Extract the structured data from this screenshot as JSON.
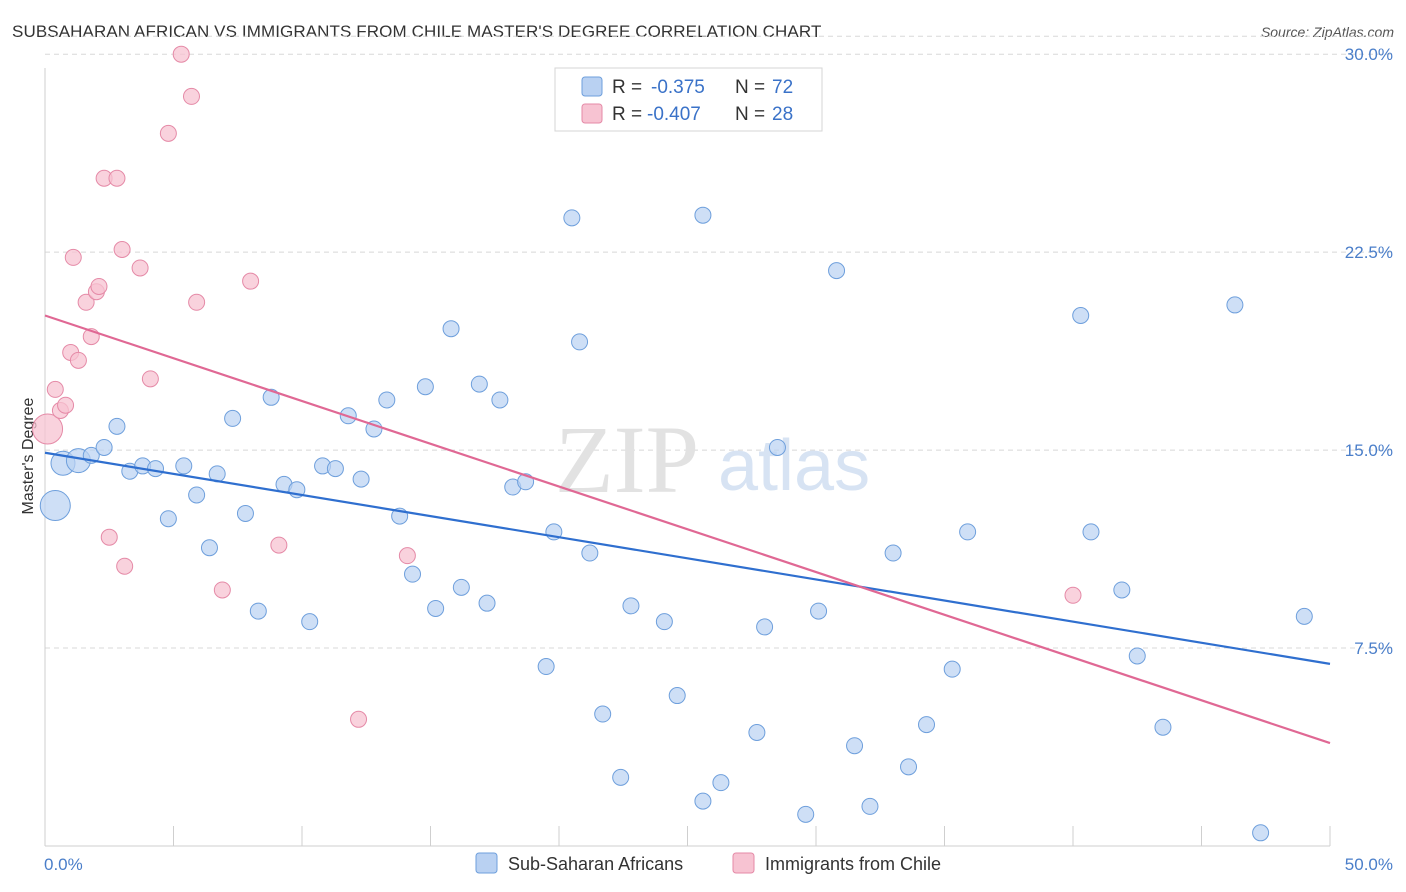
{
  "header": {
    "title": "SUBSAHARAN AFRICAN VS IMMIGRANTS FROM CHILE MASTER'S DEGREE CORRELATION CHART",
    "source": "Source: ZipAtlas.com"
  },
  "watermark": {
    "zip": "ZIP",
    "atlas": "atlas"
  },
  "legend_top": {
    "rows": [
      {
        "r_label": "R =",
        "r_value": "-0.375",
        "n_label": "N =",
        "n_value": "72"
      },
      {
        "r_label": "R =",
        "r_value": "-0.407",
        "n_label": "N =",
        "n_value": "28"
      }
    ]
  },
  "legend_bottom": {
    "items": [
      {
        "label": "Sub-Saharan Africans"
      },
      {
        "label": "Immigrants from Chile"
      }
    ]
  },
  "colors": {
    "blue_fill": "#b9d1f2",
    "blue_stroke": "#6e9fdc",
    "blue_line": "#2f6fcf",
    "pink_fill": "#f7c3d2",
    "pink_stroke": "#e58aa7",
    "pink_line": "#e06894",
    "tick_text": "#4a7ec9",
    "grid": "#d8d8d8"
  },
  "chart_data": {
    "type": "scatter",
    "title": "SUBSAHARAN AFRICAN VS IMMIGRANTS FROM CHILE MASTER'S DEGREE CORRELATION CHART",
    "xlabel": "",
    "ylabel": "Master's Degree",
    "xlim": [
      0,
      50
    ],
    "ylim": [
      0,
      30.5
    ],
    "x_tick_labels": [
      "0.0%",
      "50.0%"
    ],
    "y_ticks": [
      7.5,
      15.0,
      22.5,
      30.0
    ],
    "y_tick_labels": [
      "7.5%",
      "15.0%",
      "22.5%",
      "30.0%"
    ],
    "grid": "horizontal dashed",
    "legend_placement": "top-center",
    "series": [
      {
        "name": "Sub-Saharan Africans",
        "r": -0.375,
        "n": 72,
        "trend": {
          "x": [
            0,
            50
          ],
          "y": [
            14.9,
            6.9
          ]
        },
        "points": [
          {
            "x": 0.4,
            "y": 12.9,
            "s": 3
          },
          {
            "x": 0.7,
            "y": 14.5,
            "s": 2
          },
          {
            "x": 1.3,
            "y": 14.6,
            "s": 2
          },
          {
            "x": 1.8,
            "y": 14.8,
            "s": 1
          },
          {
            "x": 2.3,
            "y": 15.1,
            "s": 1
          },
          {
            "x": 2.8,
            "y": 15.9,
            "s": 1
          },
          {
            "x": 3.3,
            "y": 14.2,
            "s": 1
          },
          {
            "x": 3.8,
            "y": 14.4,
            "s": 1
          },
          {
            "x": 4.3,
            "y": 14.3,
            "s": 1
          },
          {
            "x": 4.8,
            "y": 12.4,
            "s": 1
          },
          {
            "x": 5.4,
            "y": 14.4,
            "s": 1
          },
          {
            "x": 5.9,
            "y": 13.3,
            "s": 1
          },
          {
            "x": 6.4,
            "y": 11.3,
            "s": 1
          },
          {
            "x": 6.7,
            "y": 14.1,
            "s": 1
          },
          {
            "x": 7.3,
            "y": 16.2,
            "s": 1
          },
          {
            "x": 7.8,
            "y": 12.6,
            "s": 1
          },
          {
            "x": 8.3,
            "y": 8.9,
            "s": 1
          },
          {
            "x": 8.8,
            "y": 17.0,
            "s": 1
          },
          {
            "x": 9.3,
            "y": 13.7,
            "s": 1
          },
          {
            "x": 9.8,
            "y": 13.5,
            "s": 1
          },
          {
            "x": 10.3,
            "y": 8.5,
            "s": 1
          },
          {
            "x": 10.8,
            "y": 14.4,
            "s": 1
          },
          {
            "x": 11.3,
            "y": 14.3,
            "s": 1
          },
          {
            "x": 11.8,
            "y": 16.3,
            "s": 1
          },
          {
            "x": 12.3,
            "y": 13.9,
            "s": 1
          },
          {
            "x": 12.8,
            "y": 15.8,
            "s": 1
          },
          {
            "x": 13.3,
            "y": 16.9,
            "s": 1
          },
          {
            "x": 13.8,
            "y": 12.5,
            "s": 1
          },
          {
            "x": 14.3,
            "y": 10.3,
            "s": 1
          },
          {
            "x": 14.8,
            "y": 17.4,
            "s": 1
          },
          {
            "x": 15.2,
            "y": 9.0,
            "s": 1
          },
          {
            "x": 15.8,
            "y": 19.6,
            "s": 1
          },
          {
            "x": 16.2,
            "y": 9.8,
            "s": 1
          },
          {
            "x": 16.9,
            "y": 17.5,
            "s": 1
          },
          {
            "x": 17.2,
            "y": 9.2,
            "s": 1
          },
          {
            "x": 17.7,
            "y": 16.9,
            "s": 1
          },
          {
            "x": 18.2,
            "y": 13.6,
            "s": 1
          },
          {
            "x": 18.7,
            "y": 13.8,
            "s": 1
          },
          {
            "x": 19.5,
            "y": 6.8,
            "s": 1
          },
          {
            "x": 19.8,
            "y": 11.9,
            "s": 1
          },
          {
            "x": 20.5,
            "y": 23.8,
            "s": 1
          },
          {
            "x": 20.8,
            "y": 19.1,
            "s": 1
          },
          {
            "x": 21.2,
            "y": 11.1,
            "s": 1
          },
          {
            "x": 21.7,
            "y": 5.0,
            "s": 1
          },
          {
            "x": 22.4,
            "y": 2.6,
            "s": 1
          },
          {
            "x": 22.8,
            "y": 9.1,
            "s": 1
          },
          {
            "x": 24.1,
            "y": 8.5,
            "s": 1
          },
          {
            "x": 24.6,
            "y": 5.7,
            "s": 1
          },
          {
            "x": 25.6,
            "y": 23.9,
            "s": 1
          },
          {
            "x": 25.6,
            "y": 1.7,
            "s": 1
          },
          {
            "x": 26.3,
            "y": 2.4,
            "s": 1
          },
          {
            "x": 27.7,
            "y": 4.3,
            "s": 1
          },
          {
            "x": 28.0,
            "y": 8.3,
            "s": 1
          },
          {
            "x": 28.5,
            "y": 15.1,
            "s": 1
          },
          {
            "x": 29.6,
            "y": 1.2,
            "s": 1
          },
          {
            "x": 30.1,
            "y": 8.9,
            "s": 1
          },
          {
            "x": 30.8,
            "y": 21.8,
            "s": 1
          },
          {
            "x": 31.5,
            "y": 3.8,
            "s": 1
          },
          {
            "x": 32.1,
            "y": 1.5,
            "s": 1
          },
          {
            "x": 33.0,
            "y": 11.1,
            "s": 1
          },
          {
            "x": 33.6,
            "y": 3.0,
            "s": 1
          },
          {
            "x": 34.3,
            "y": 4.6,
            "s": 1
          },
          {
            "x": 35.3,
            "y": 6.7,
            "s": 1
          },
          {
            "x": 35.9,
            "y": 11.9,
            "s": 1
          },
          {
            "x": 40.3,
            "y": 20.1,
            "s": 1
          },
          {
            "x": 40.7,
            "y": 11.9,
            "s": 1
          },
          {
            "x": 41.9,
            "y": 9.7,
            "s": 1
          },
          {
            "x": 42.5,
            "y": 7.2,
            "s": 1
          },
          {
            "x": 43.5,
            "y": 4.5,
            "s": 1
          },
          {
            "x": 46.3,
            "y": 20.5,
            "s": 1
          },
          {
            "x": 47.3,
            "y": 0.5,
            "s": 1
          },
          {
            "x": 49.0,
            "y": 8.7,
            "s": 1
          }
        ]
      },
      {
        "name": "Immigrants from Chile",
        "r": -0.407,
        "n": 28,
        "trend": {
          "x": [
            0,
            50
          ],
          "y": [
            20.1,
            3.9
          ]
        },
        "points": [
          {
            "x": 0.1,
            "y": 15.8,
            "s": 3
          },
          {
            "x": 0.4,
            "y": 17.3,
            "s": 1
          },
          {
            "x": 0.6,
            "y": 16.5,
            "s": 1
          },
          {
            "x": 0.8,
            "y": 16.7,
            "s": 1
          },
          {
            "x": 1.0,
            "y": 18.7,
            "s": 1
          },
          {
            "x": 1.1,
            "y": 22.3,
            "s": 1
          },
          {
            "x": 1.3,
            "y": 18.4,
            "s": 1
          },
          {
            "x": 1.6,
            "y": 20.6,
            "s": 1
          },
          {
            "x": 1.8,
            "y": 19.3,
            "s": 1
          },
          {
            "x": 2.0,
            "y": 21.0,
            "s": 1
          },
          {
            "x": 2.1,
            "y": 21.2,
            "s": 1
          },
          {
            "x": 2.3,
            "y": 25.3,
            "s": 1
          },
          {
            "x": 2.5,
            "y": 11.7,
            "s": 1
          },
          {
            "x": 2.8,
            "y": 25.3,
            "s": 1
          },
          {
            "x": 3.0,
            "y": 22.6,
            "s": 1
          },
          {
            "x": 3.1,
            "y": 10.6,
            "s": 1
          },
          {
            "x": 3.7,
            "y": 21.9,
            "s": 1
          },
          {
            "x": 4.1,
            "y": 17.7,
            "s": 1
          },
          {
            "x": 4.8,
            "y": 27.0,
            "s": 1
          },
          {
            "x": 5.3,
            "y": 30.0,
            "s": 1
          },
          {
            "x": 5.7,
            "y": 28.4,
            "s": 1
          },
          {
            "x": 5.9,
            "y": 20.6,
            "s": 1
          },
          {
            "x": 6.9,
            "y": 9.7,
            "s": 1
          },
          {
            "x": 8.0,
            "y": 21.4,
            "s": 1
          },
          {
            "x": 9.1,
            "y": 11.4,
            "s": 1
          },
          {
            "x": 12.2,
            "y": 4.8,
            "s": 1
          },
          {
            "x": 14.1,
            "y": 11.0,
            "s": 1
          },
          {
            "x": 40.0,
            "y": 9.5,
            "s": 1
          }
        ]
      }
    ]
  }
}
